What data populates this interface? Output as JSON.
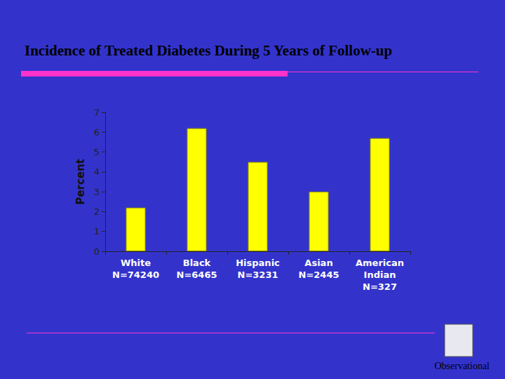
{
  "chart_data": {
    "type": "bar",
    "title": "Incidence of Treated Diabetes During 5 Years of Follow-up",
    "y_label": "Percent",
    "categories": [
      "White\nN=74240",
      "Black\nN=6465",
      "Hispanic\nN=3231",
      "Asian\nN=2445",
      "American\nIndian\nN=327"
    ],
    "values": [
      2.2,
      6.2,
      4.5,
      3.0,
      5.7
    ],
    "color": "#ffff00",
    "ylim": [
      0,
      7
    ],
    "yticks": [
      0,
      1,
      2,
      3,
      4,
      5,
      6,
      7
    ],
    "grid": false,
    "annotation": "Observational"
  }
}
